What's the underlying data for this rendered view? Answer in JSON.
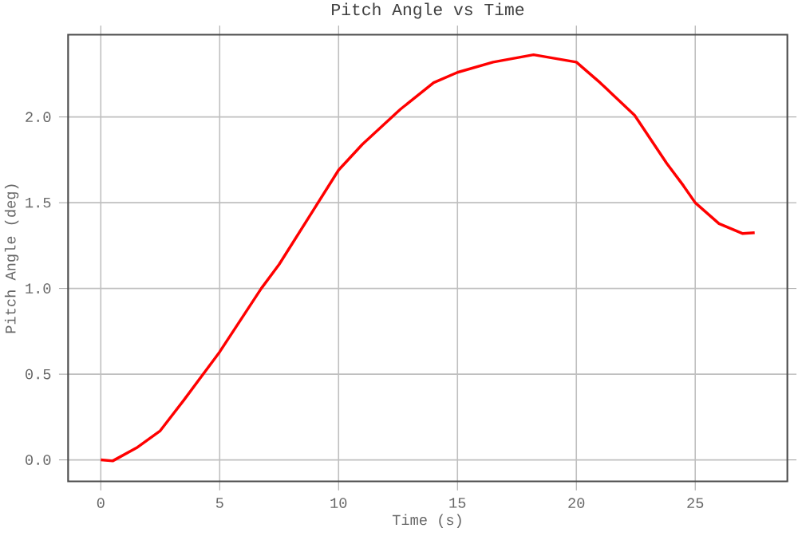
{
  "chart_data": {
    "type": "line",
    "title": "Pitch Angle vs Time",
    "xlabel": "Time (s)",
    "ylabel": "Pitch Angle (deg)",
    "xlim": [
      -1.375,
      28.875
    ],
    "ylim": [
      -0.125,
      2.48
    ],
    "xticks": [
      0,
      5,
      10,
      15,
      20,
      25
    ],
    "yticks": [
      {
        "value": 0,
        "label": "0.0"
      },
      {
        "value": 0.5,
        "label": "0.5"
      },
      {
        "value": 1.0,
        "label": "1.0"
      },
      {
        "value": 1.5,
        "label": "1.5"
      },
      {
        "value": 2.0,
        "label": "2.0"
      }
    ],
    "grid": true,
    "marker": "none",
    "line_style": "solid",
    "series": [
      {
        "color": "#ff0000",
        "x": [
          0,
          0.5,
          1.5,
          2.5,
          3.5,
          5,
          6.75,
          7.5,
          9,
          10,
          11,
          12.6,
          14,
          15,
          16.5,
          18.2,
          20,
          21,
          22.45,
          23.8,
          24.5,
          25,
          26,
          27,
          27.5
        ],
        "values": [
          0,
          -0.006,
          0.07,
          0.17,
          0.35,
          0.63,
          1.0,
          1.14,
          1.47,
          1.69,
          1.84,
          2.045,
          2.2,
          2.26,
          2.32,
          2.363,
          2.32,
          2.2,
          2.01,
          1.73,
          1.6,
          1.5,
          1.378,
          1.32,
          1.325
        ]
      }
    ]
  }
}
